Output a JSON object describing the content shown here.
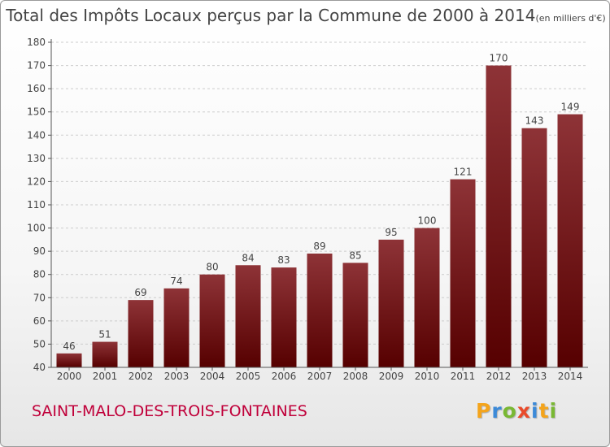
{
  "title": {
    "main": "Total des Impôts Locaux perçus par la Commune de 2000 à 2014",
    "unit": "(en milliers d'€)"
  },
  "commune_name": "SAINT-MALO-DES-TROIS-FONTAINES",
  "brand": {
    "letters": [
      "P",
      "r",
      "o",
      "x",
      "i",
      "t",
      "i"
    ],
    "colors": [
      "#f4a41b",
      "#3c8ad8",
      "#79b833",
      "#e94a2a",
      "#3c8ad8",
      "#f4a41b",
      "#79b833"
    ]
  },
  "colors": {
    "bar_top": "#8e3337",
    "bar_bottom": "#560000",
    "axis": "#555555",
    "grid": "#cccccc",
    "commune": "#c0003a"
  },
  "chart_data": {
    "type": "bar",
    "title": "Total des Impôts Locaux perçus par la Commune de 2000 à 2014",
    "xlabel": "",
    "ylabel": "en milliers d'€",
    "categories": [
      "2000",
      "2001",
      "2002",
      "2003",
      "2004",
      "2005",
      "2006",
      "2007",
      "2008",
      "2009",
      "2010",
      "2011",
      "2012",
      "2013",
      "2014"
    ],
    "values": [
      46,
      51,
      69,
      74,
      80,
      84,
      83,
      89,
      85,
      95,
      100,
      121,
      170,
      143,
      149
    ],
    "ylim": [
      40,
      180
    ],
    "yticks": [
      40,
      50,
      60,
      70,
      80,
      90,
      100,
      110,
      120,
      130,
      140,
      150,
      160,
      170,
      180
    ],
    "grid": "horizontal-dashed",
    "legend": "none"
  }
}
